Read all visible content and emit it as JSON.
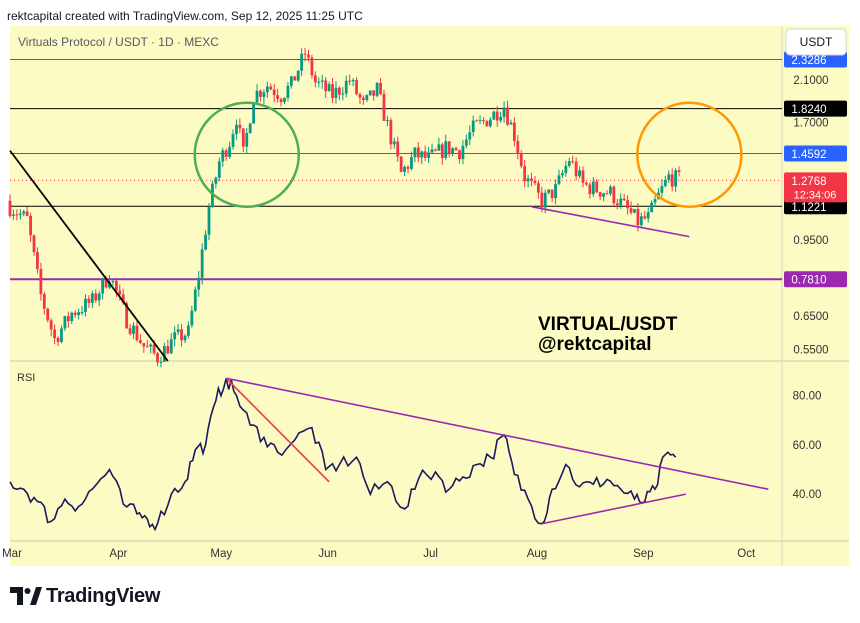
{
  "header": {
    "caption": "rektcapital created with TradingView.com, Sep 12, 2025 11:25 UTC"
  },
  "footer": {
    "brand": "TradingView"
  },
  "chart_data": {
    "type": "candlestick",
    "title": "Virtuals Protocol / USDT · 1D · MEXC",
    "currency_button": "USDT",
    "annotation": [
      "VIRTUAL/USDT",
      "@rektcapital"
    ],
    "price_axis": {
      "scale": "log",
      "ylim": [
        0.52,
        2.75
      ],
      "ticks": [
        "2.1000",
        "1.7000",
        "0.9500",
        "0.6500",
        "0.5500"
      ]
    },
    "levels": [
      {
        "value": 2.3286,
        "label": "2.3286",
        "color": "#2962ff"
      },
      {
        "value": 1.824,
        "label": "1.8240",
        "color": "#000000"
      },
      {
        "value": 1.4592,
        "label": "1.4592",
        "color": "#2962ff"
      },
      {
        "value": 1.1221,
        "label": "1.1221",
        "color": "#000000"
      },
      {
        "value": 0.781,
        "label": "0.7810",
        "color": "#9c27b0"
      }
    ],
    "current_price": {
      "value": 1.2768,
      "label": "1.2768",
      "countdown": "12:34:06",
      "color": "#f23645"
    },
    "x_axis": {
      "start": "2025-03-01",
      "end": "2025-10-12",
      "labels": [
        {
          "date": "2025-03-01",
          "text": "Mar"
        },
        {
          "date": "2025-04-01",
          "text": "Apr"
        },
        {
          "date": "2025-05-01",
          "text": "May"
        },
        {
          "date": "2025-06-01",
          "text": "Jun"
        },
        {
          "date": "2025-07-01",
          "text": "Jul"
        },
        {
          "date": "2025-08-01",
          "text": "Aug"
        },
        {
          "date": "2025-09-01",
          "text": "Sep"
        },
        {
          "date": "2025-10-01",
          "text": "Oct"
        }
      ]
    },
    "close_series": [
      [
        "2025-03-01",
        1.12
      ],
      [
        "2025-03-06",
        1.05
      ],
      [
        "2025-03-10",
        0.72
      ],
      [
        "2025-03-14",
        0.58
      ],
      [
        "2025-03-19",
        0.66
      ],
      [
        "2025-03-25",
        0.7
      ],
      [
        "2025-03-30",
        0.8
      ],
      [
        "2025-04-04",
        0.64
      ],
      [
        "2025-04-09",
        0.56
      ],
      [
        "2025-04-13",
        0.53
      ],
      [
        "2025-04-18",
        0.58
      ],
      [
        "2025-04-22",
        0.6
      ],
      [
        "2025-04-25",
        0.8
      ],
      [
        "2025-04-28",
        1.12
      ],
      [
        "2025-05-01",
        1.4
      ],
      [
        "2025-05-04",
        1.55
      ],
      [
        "2025-05-06",
        1.75
      ],
      [
        "2025-05-08",
        1.45
      ],
      [
        "2025-05-11",
        1.95
      ],
      [
        "2025-05-15",
        2.05
      ],
      [
        "2025-05-19",
        1.95
      ],
      [
        "2025-05-22",
        2.05
      ],
      [
        "2025-05-26",
        2.4
      ],
      [
        "2025-05-29",
        2.08
      ],
      [
        "2025-06-03",
        1.95
      ],
      [
        "2025-06-08",
        2.1
      ],
      [
        "2025-06-12",
        1.85
      ],
      [
        "2025-06-16",
        2.0
      ],
      [
        "2025-06-20",
        1.58
      ],
      [
        "2025-06-23",
        1.32
      ],
      [
        "2025-06-27",
        1.45
      ],
      [
        "2025-07-01",
        1.42
      ],
      [
        "2025-07-06",
        1.5
      ],
      [
        "2025-07-10",
        1.48
      ],
      [
        "2025-07-14",
        1.65
      ],
      [
        "2025-07-19",
        1.75
      ],
      [
        "2025-07-23",
        1.85
      ],
      [
        "2025-07-26",
        1.6
      ],
      [
        "2025-07-29",
        1.3
      ],
      [
        "2025-08-03",
        1.15
      ],
      [
        "2025-08-07",
        1.22
      ],
      [
        "2025-08-11",
        1.42
      ],
      [
        "2025-08-15",
        1.25
      ],
      [
        "2025-08-19",
        1.22
      ],
      [
        "2025-08-23",
        1.2
      ],
      [
        "2025-08-27",
        1.12
      ],
      [
        "2025-08-31",
        1.04
      ],
      [
        "2025-09-03",
        1.06
      ],
      [
        "2025-09-06",
        1.18
      ],
      [
        "2025-09-09",
        1.3
      ],
      [
        "2025-09-12",
        1.28
      ]
    ],
    "rsi": {
      "label": "RSI",
      "ylim": [
        21,
        94
      ],
      "ticks": [
        "80.00",
        "60.00",
        "40.00"
      ],
      "series": [
        [
          "2025-03-01",
          45
        ],
        [
          "2025-03-05",
          42
        ],
        [
          "2025-03-09",
          37
        ],
        [
          "2025-03-13",
          29
        ],
        [
          "2025-03-17",
          38
        ],
        [
          "2025-03-21",
          35
        ],
        [
          "2025-03-25",
          42
        ],
        [
          "2025-03-30",
          50
        ],
        [
          "2025-04-03",
          36
        ],
        [
          "2025-04-07",
          32
        ],
        [
          "2025-04-10",
          30
        ],
        [
          "2025-04-13",
          28
        ],
        [
          "2025-04-17",
          40
        ],
        [
          "2025-04-21",
          45
        ],
        [
          "2025-04-24",
          58
        ],
        [
          "2025-04-27",
          60
        ],
        [
          "2025-04-30",
          78
        ],
        [
          "2025-05-03",
          87
        ],
        [
          "2025-05-06",
          80
        ],
        [
          "2025-05-10",
          68
        ],
        [
          "2025-05-14",
          63
        ],
        [
          "2025-05-18",
          57
        ],
        [
          "2025-05-23",
          62
        ],
        [
          "2025-05-28",
          67
        ],
        [
          "2025-06-01",
          50
        ],
        [
          "2025-06-05",
          52
        ],
        [
          "2025-06-10",
          55
        ],
        [
          "2025-06-14",
          40
        ],
        [
          "2025-06-19",
          45
        ],
        [
          "2025-06-24",
          34
        ],
        [
          "2025-06-28",
          46
        ],
        [
          "2025-07-03",
          49
        ],
        [
          "2025-07-07",
          42
        ],
        [
          "2025-07-11",
          47
        ],
        [
          "2025-07-15",
          52
        ],
        [
          "2025-07-19",
          55
        ],
        [
          "2025-07-23",
          64
        ],
        [
          "2025-07-26",
          48
        ],
        [
          "2025-07-30",
          38
        ],
        [
          "2025-08-03",
          28
        ],
        [
          "2025-08-06",
          42
        ],
        [
          "2025-08-10",
          52
        ],
        [
          "2025-08-14",
          43
        ],
        [
          "2025-08-18",
          44
        ],
        [
          "2025-08-22",
          46
        ],
        [
          "2025-08-26",
          42
        ],
        [
          "2025-08-30",
          38
        ],
        [
          "2025-09-02",
          37
        ],
        [
          "2025-09-05",
          42
        ],
        [
          "2025-09-08",
          56
        ],
        [
          "2025-09-11",
          55
        ]
      ]
    },
    "trendlines": [
      {
        "name": "price-downtrend",
        "from": [
          "2025-03-01",
          1.48
        ],
        "to": [
          "2025-04-16",
          0.52
        ],
        "color": "#000000"
      },
      {
        "name": "price-support",
        "from": [
          "2025-07-31",
          1.12
        ],
        "to": [
          "2025-09-15",
          0.965
        ],
        "color": "#9c27b0"
      },
      {
        "name": "rsi-downtrend-red",
        "from": [
          "2025-05-03",
          87
        ],
        "to": [
          "2025-06-02",
          45
        ],
        "color": "#f23645"
      },
      {
        "name": "rsi-downtrend-purple",
        "from": [
          "2025-05-03",
          87
        ],
        "to": [
          "2025-10-08",
          42
        ],
        "color": "#9c27b0"
      },
      {
        "name": "rsi-support",
        "from": [
          "2025-08-03",
          28
        ],
        "to": [
          "2025-09-14",
          40
        ],
        "color": "#9c27b0"
      }
    ],
    "highlights": [
      {
        "name": "breakout-circle",
        "center": [
          "2025-05-09",
          1.45
        ],
        "color": "#4caf50"
      },
      {
        "name": "target-circle",
        "center": [
          "2025-09-15",
          1.45
        ],
        "color": "#ff9800"
      }
    ]
  }
}
